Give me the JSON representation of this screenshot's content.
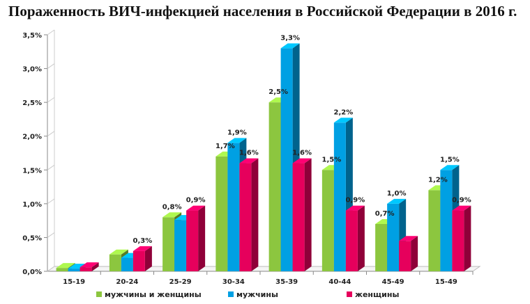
{
  "chart_data": {
    "type": "bar",
    "title": "Пораженность ВИЧ-инфекцией населения в Российской Федерации в 2016 г.",
    "categories": [
      "15-19",
      "20-24",
      "25-29",
      "30-34",
      "35-39",
      "40-44",
      "45-49",
      "15-49"
    ],
    "series": [
      {
        "name": "мужчины и женщины",
        "color": "#8cc63f",
        "values": [
          0.05,
          0.25,
          0.8,
          1.7,
          2.5,
          1.5,
          0.7,
          1.2
        ],
        "labels": [
          "",
          "",
          "0,8%",
          "1,7%",
          "2,5%",
          "1,5%",
          "0,7%",
          "1,2%"
        ]
      },
      {
        "name": "мужчины",
        "color": "#00a0e3",
        "values": [
          0.04,
          0.2,
          0.76,
          1.9,
          3.3,
          2.2,
          1.0,
          1.5
        ],
        "labels": [
          "",
          "",
          "",
          "1,9%",
          "3,3%",
          "2,2%",
          "1,0%",
          "1,5%"
        ]
      },
      {
        "name": "женщины",
        "color": "#e6005c",
        "values": [
          0.06,
          0.3,
          0.9,
          1.6,
          1.6,
          0.9,
          0.45,
          0.9
        ],
        "labels": [
          "",
          "0,3%",
          "0,9%",
          "1,6%",
          "1,6%",
          "0,9%",
          "",
          "0,9%"
        ]
      }
    ],
    "yticks": [
      "0,0%",
      "0,5%",
      "1,0%",
      "1,5%",
      "2,0%",
      "2,5%",
      "3,0%",
      "3,5%"
    ],
    "ylim": [
      0,
      3.5
    ],
    "xlabel": "",
    "ylabel": "",
    "legend_position": "bottom",
    "grid": false
  }
}
